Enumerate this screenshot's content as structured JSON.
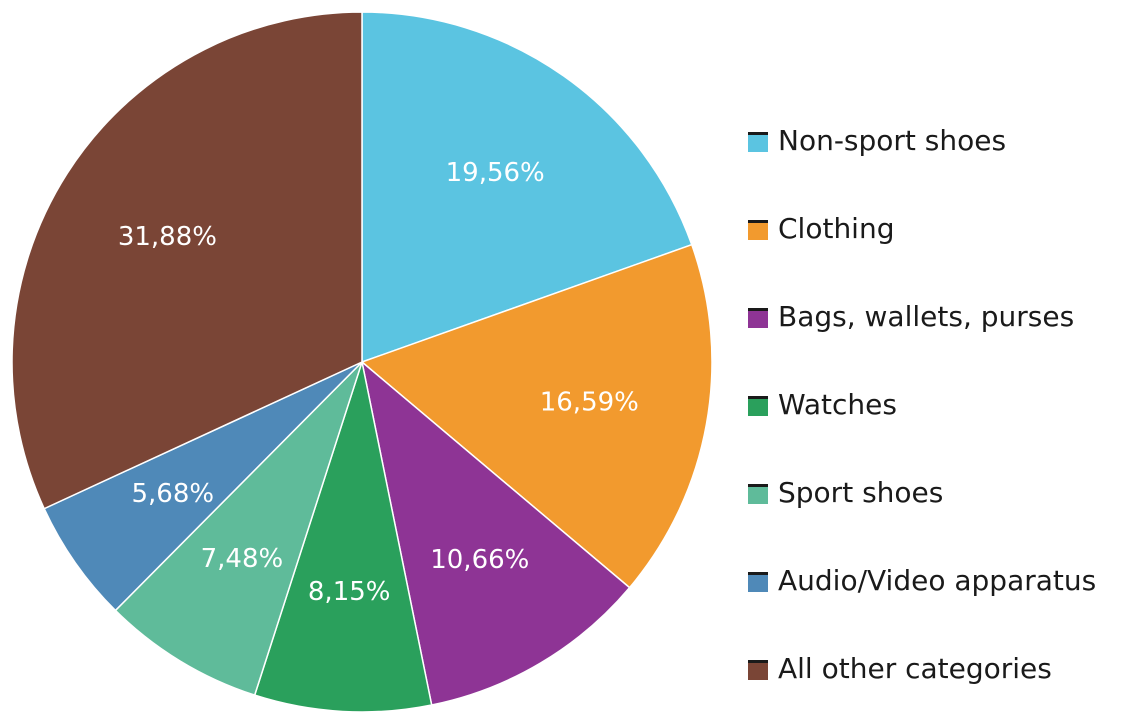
{
  "chart_data": {
    "type": "pie",
    "title": "",
    "start_angle_deg": 0,
    "direction": "clockwise",
    "legend_position": "right",
    "slices": [
      {
        "name": "Non-sport shoes",
        "value": 19.56,
        "label": "19,56%",
        "color": "#5bc4e1"
      },
      {
        "name": "Clothing",
        "value": 16.59,
        "label": "16,59%",
        "color": "#f29a2e"
      },
      {
        "name": "Bags, wallets, purses",
        "value": 10.66,
        "label": "10,66%",
        "color": "#8e3495"
      },
      {
        "name": "Watches",
        "value": 8.15,
        "label": "8,15%",
        "color": "#2aa05c"
      },
      {
        "name": "Sport shoes",
        "value": 7.48,
        "label": "7,48%",
        "color": "#5fbb9a"
      },
      {
        "name": "Audio/Video apparatus",
        "value": 5.68,
        "label": "5,68%",
        "color": "#4f89b8"
      },
      {
        "name": "All other categories",
        "value": 31.88,
        "label": "31,88%",
        "color": "#7a4536"
      }
    ]
  }
}
